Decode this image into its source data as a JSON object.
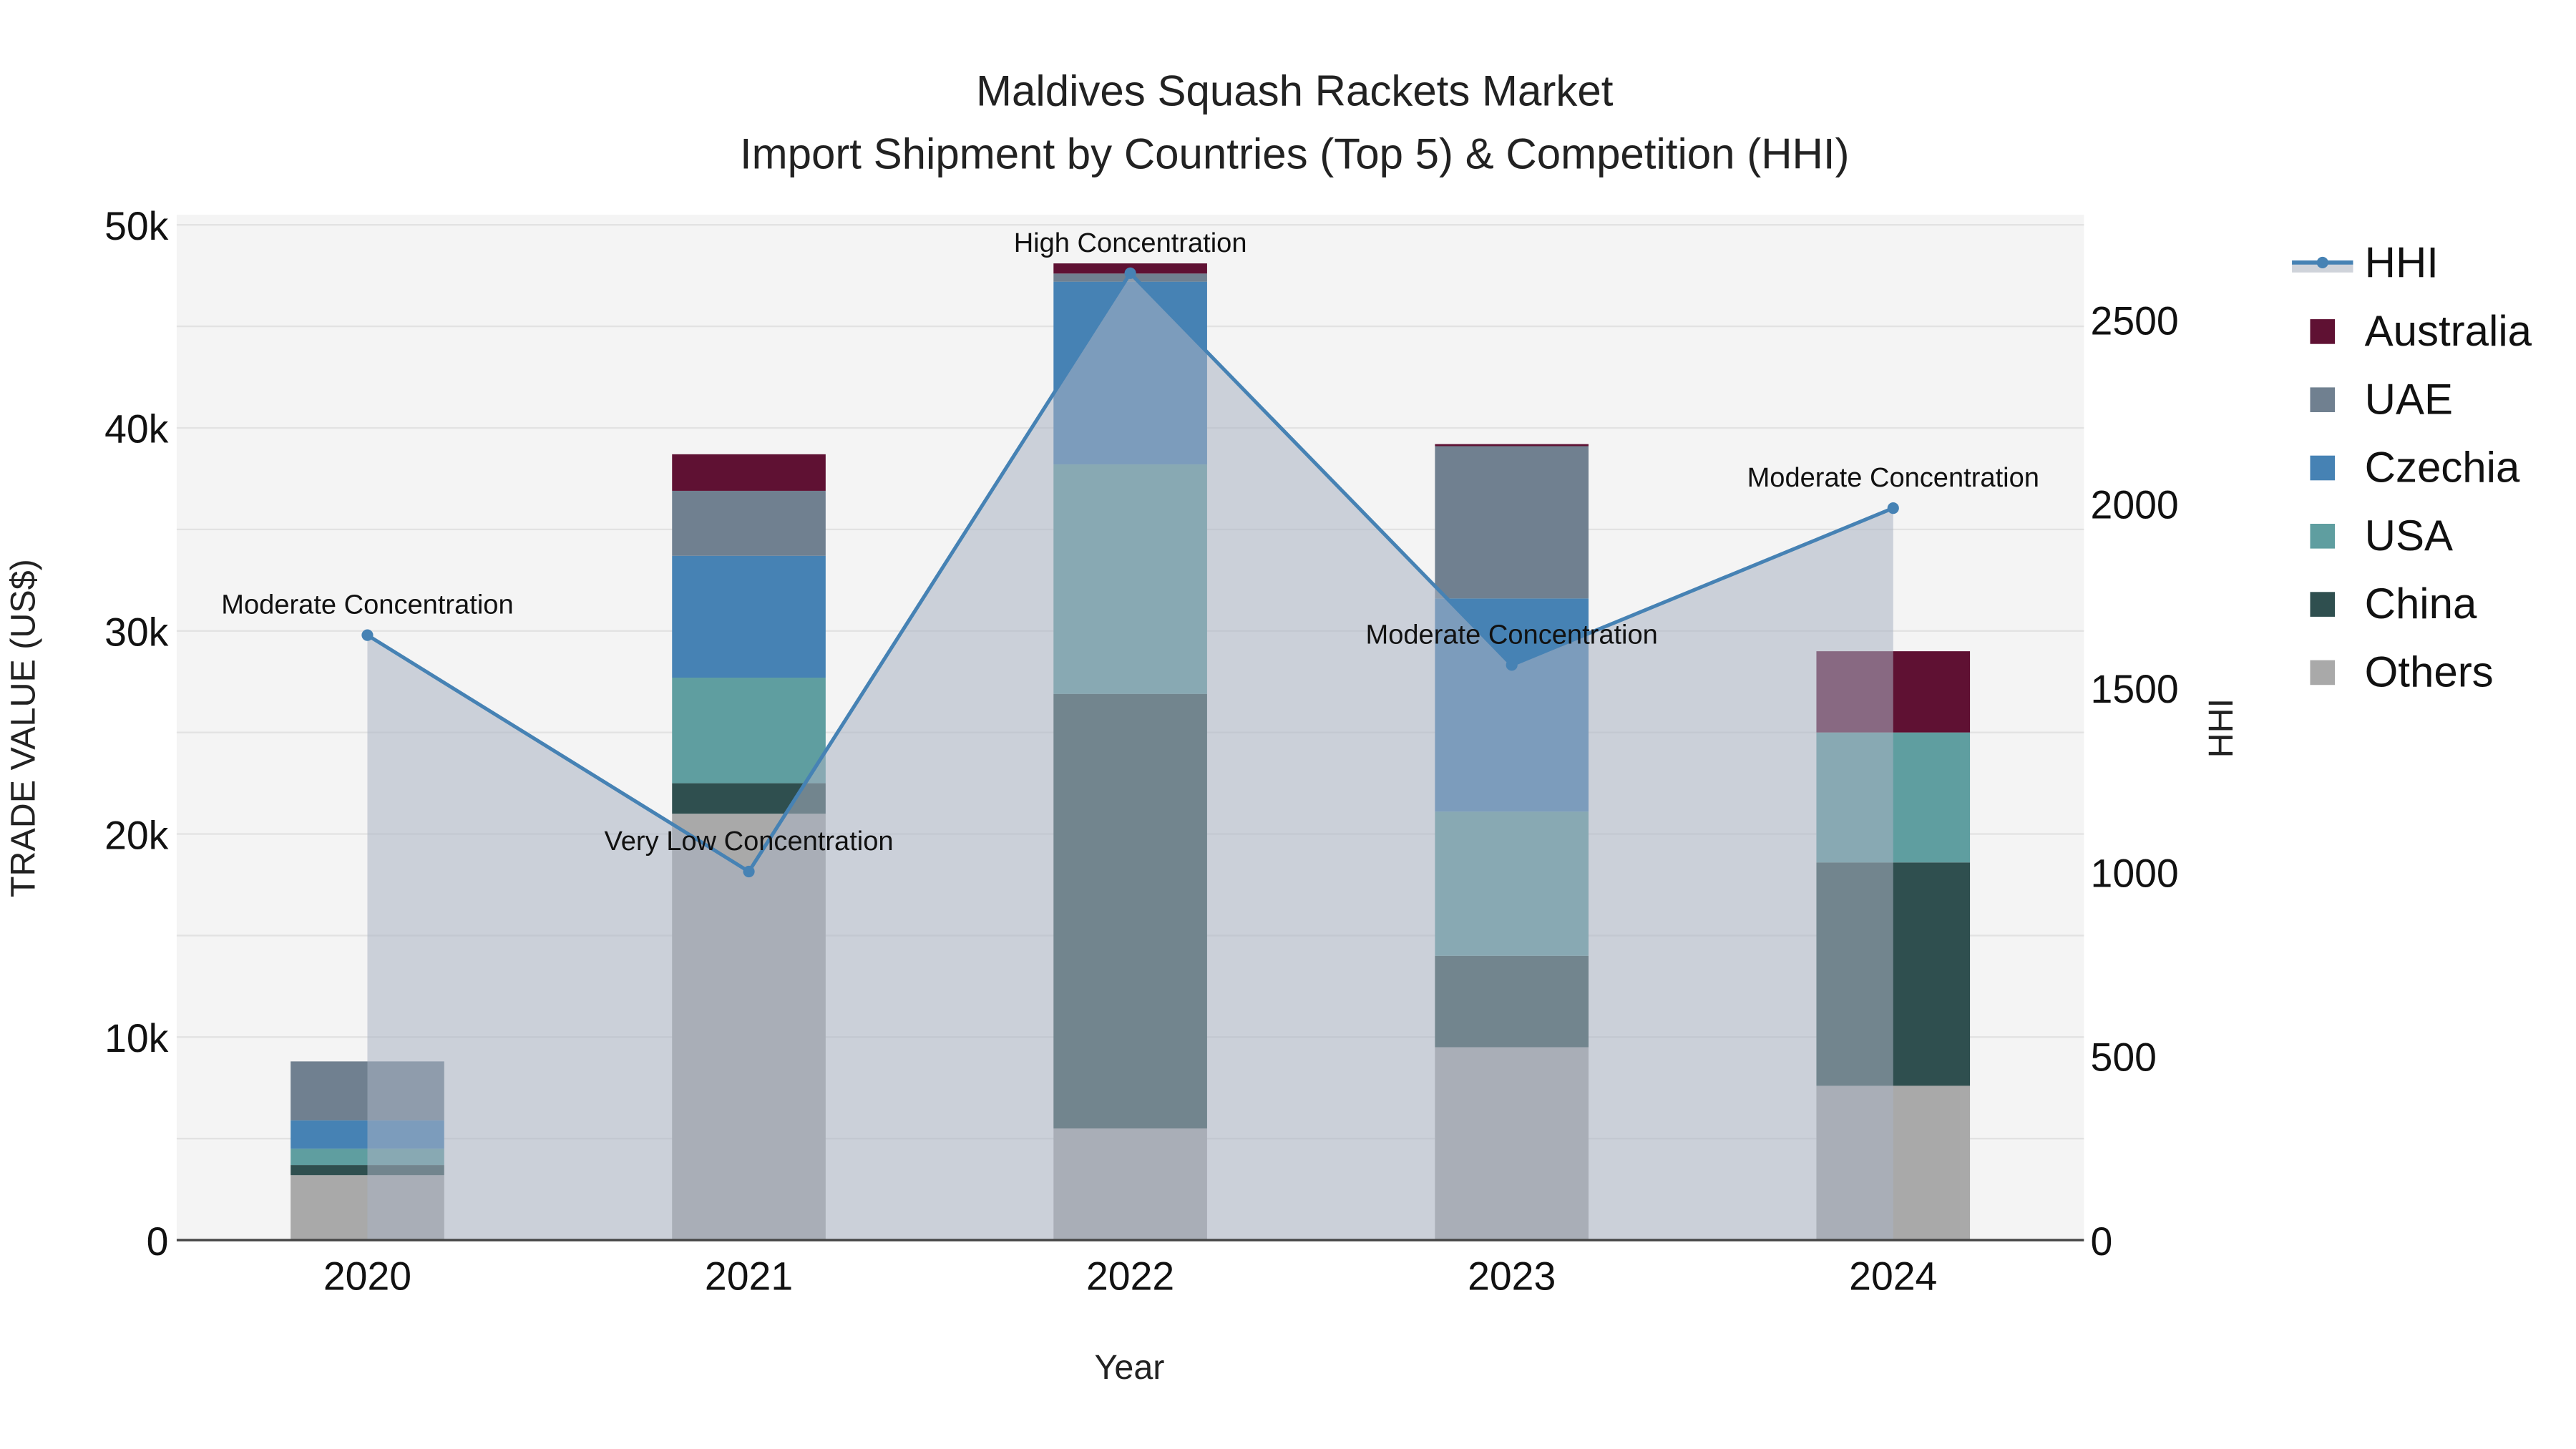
{
  "chart_data": {
    "type": "bar",
    "stacked": true,
    "title": "Maldives Squash Rackets Market",
    "subtitle": "Import Shipment by Countries (Top 5) & Competition (HHI)",
    "xlabel": "Year",
    "ylabel": "TRADE VALUE (US$)",
    "y2label": "HHI",
    "categories": [
      "2020",
      "2021",
      "2022",
      "2023",
      "2024"
    ],
    "ylim": [
      0,
      50500
    ],
    "y2lim": [
      0,
      2785
    ],
    "yticks": [
      0,
      10000,
      20000,
      30000,
      40000,
      50000
    ],
    "ytick_labels": [
      "0",
      "10k",
      "20k",
      "30k",
      "40k",
      "50k"
    ],
    "y2ticks": [
      0,
      500,
      1000,
      1500,
      2000,
      2500
    ],
    "y2tick_labels": [
      "0",
      "500",
      "1000",
      "1500",
      "2000",
      "2500"
    ],
    "grid": true,
    "legend_position": "right",
    "series": [
      {
        "name": "Others",
        "color": "#a9a9a9",
        "values": [
          3200,
          21000,
          5500,
          9500,
          7600
        ]
      },
      {
        "name": "China",
        "color": "#2f4f4f",
        "values": [
          500,
          1500,
          21400,
          4500,
          11000
        ]
      },
      {
        "name": "USA",
        "color": "#5f9ea0",
        "values": [
          800,
          5200,
          11300,
          7100,
          6400
        ]
      },
      {
        "name": "Czechia",
        "color": "#4682b4",
        "values": [
          1400,
          6000,
          9000,
          10500,
          0
        ]
      },
      {
        "name": "UAE",
        "color": "#708090",
        "values": [
          2900,
          3200,
          400,
          7500,
          0
        ]
      },
      {
        "name": "Australia",
        "color": "#5f1133",
        "values": [
          0,
          1800,
          500,
          100,
          4000
        ]
      }
    ],
    "hhi": {
      "name": "HHI",
      "color": "#4682b4",
      "values": [
        1643,
        1001,
        2626,
        1562,
        1988
      ],
      "annotations": [
        "Moderate Concentration",
        "Very Low Concentration",
        "High Concentration",
        "Moderate Concentration",
        "Moderate Concentration"
      ]
    },
    "legend": [
      "HHI",
      "Australia",
      "UAE",
      "Czechia",
      "USA",
      "China",
      "Others"
    ]
  }
}
